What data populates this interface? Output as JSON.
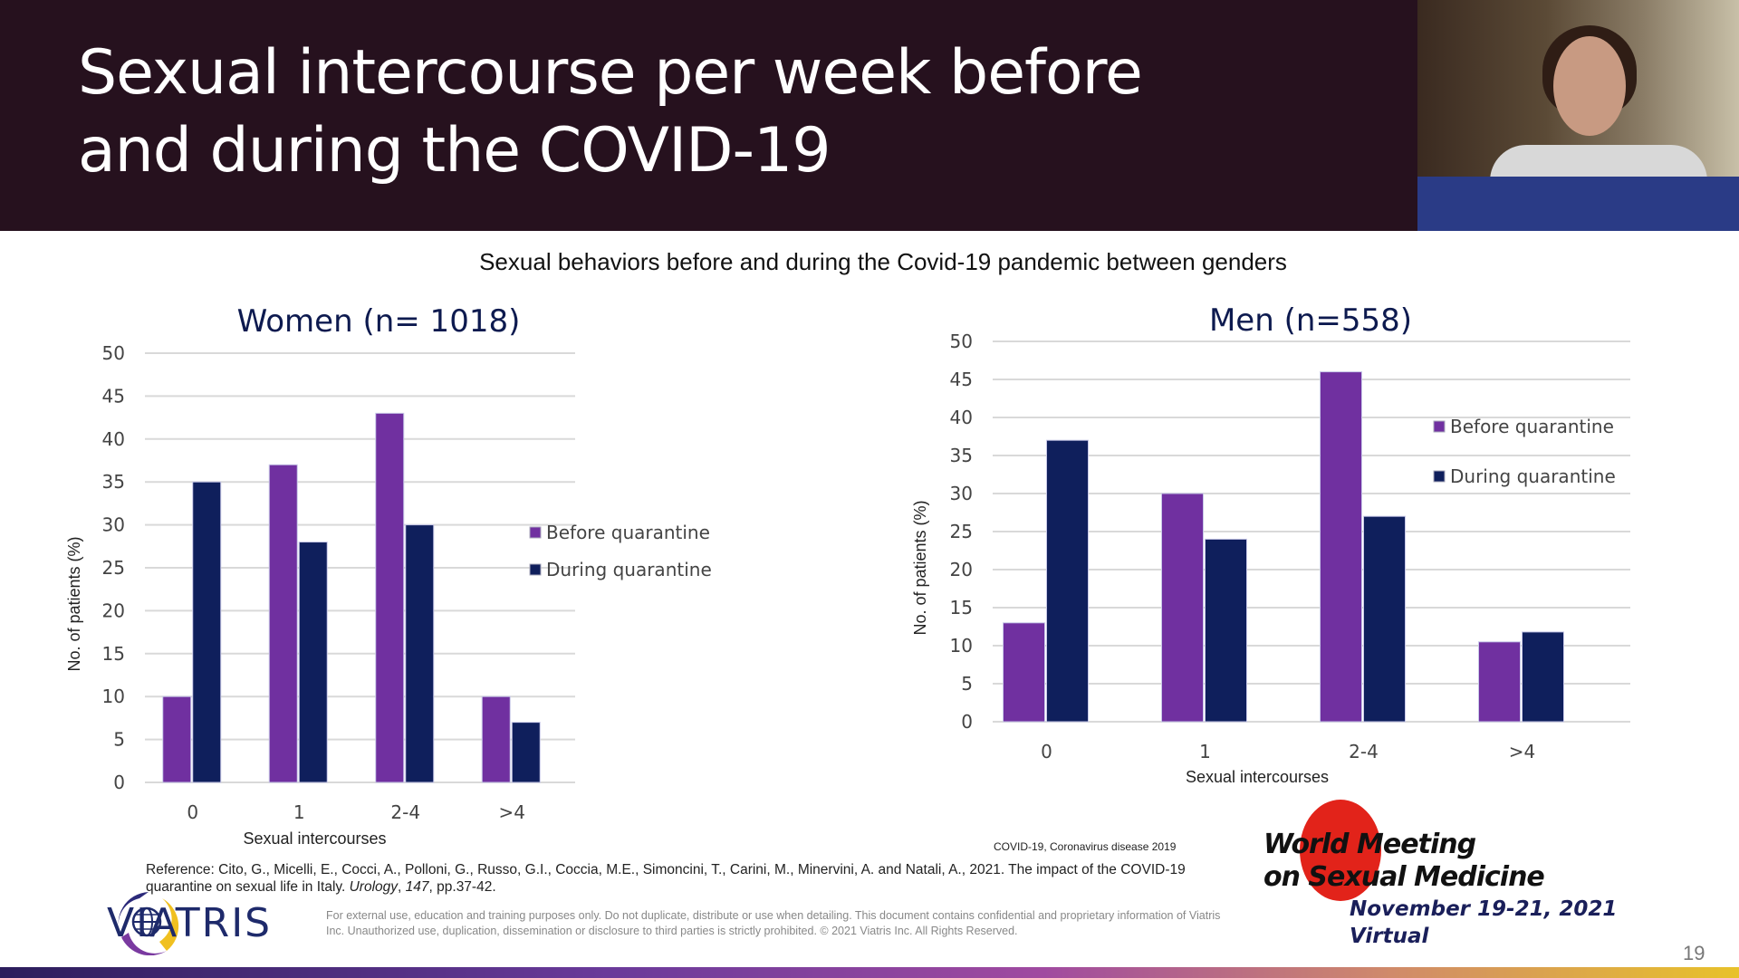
{
  "slide": {
    "title": "Sexual intercourse per week  before\nand during the COVID-19",
    "subtitle": "Sexual behaviors before and during the Covid-19 pandemic between genders",
    "covid_note": "COVID-19, Coronavirus disease 2019",
    "reference_prefix": "Reference: Cito, G., Micelli, E., Cocci, A., Polloni, G., Russo, G.I., Coccia, M.E., Simoncini, T., Carini, M., Minervini, A. and Natali, A., 2021. The impact of the COVID-19 quarantine on sexual life in Italy. ",
    "reference_journal": "Urology",
    "reference_sep": ", ",
    "reference_volume": "147",
    "reference_suffix": ", pp.37-42.",
    "disclaimer": "For external use, education and training purposes only. Do not duplicate, distribute or use when detailing. This document contains confidential and proprietary information of Viatris Inc. Unauthorized use, duplication, dissemination or disclosure to third parties is strictly prohibited. © 2021 Viatris Inc. All Rights Reserved.",
    "logo_text": "VIATRIS",
    "event": {
      "line1": "World Meeting",
      "line2": "on Sexual Medicine",
      "dates": "November 19-21, 2021",
      "format": "Virtual"
    },
    "page_number": "19"
  },
  "colors": {
    "before": "#7030a0",
    "during": "#0f1f5c",
    "header_bg": "#26111e",
    "grid": "#d9d9d9"
  },
  "chart_data": [
    {
      "type": "bar",
      "title": "Women (n= 1018)",
      "xlabel": "Sexual intercourses",
      "ylabel": "No. of patients (%)",
      "categories": [
        "0",
        "1",
        "2-4",
        ">4"
      ],
      "ylim": [
        0,
        50
      ],
      "yticks": [
        0,
        5,
        10,
        15,
        20,
        25,
        30,
        35,
        40,
        45,
        50
      ],
      "grid": true,
      "legend_position": "right",
      "series": [
        {
          "name": "Before quarantine",
          "values": [
            10,
            37,
            43,
            10
          ]
        },
        {
          "name": "During quarantine",
          "values": [
            35,
            28,
            30,
            7
          ]
        }
      ]
    },
    {
      "type": "bar",
      "title": "Men (n=558)",
      "xlabel": "Sexual intercourses",
      "ylabel": "No. of patients (%)",
      "categories": [
        "0",
        "1",
        "2-4",
        ">4"
      ],
      "ylim": [
        0,
        50
      ],
      "yticks": [
        0,
        5,
        10,
        15,
        20,
        25,
        30,
        35,
        40,
        45,
        50
      ],
      "grid": true,
      "legend_position": "top-right",
      "series": [
        {
          "name": "Before quarantine",
          "values": [
            13,
            30,
            46,
            10.5
          ]
        },
        {
          "name": "During quarantine",
          "values": [
            37,
            24,
            27,
            11.8
          ]
        }
      ]
    }
  ]
}
